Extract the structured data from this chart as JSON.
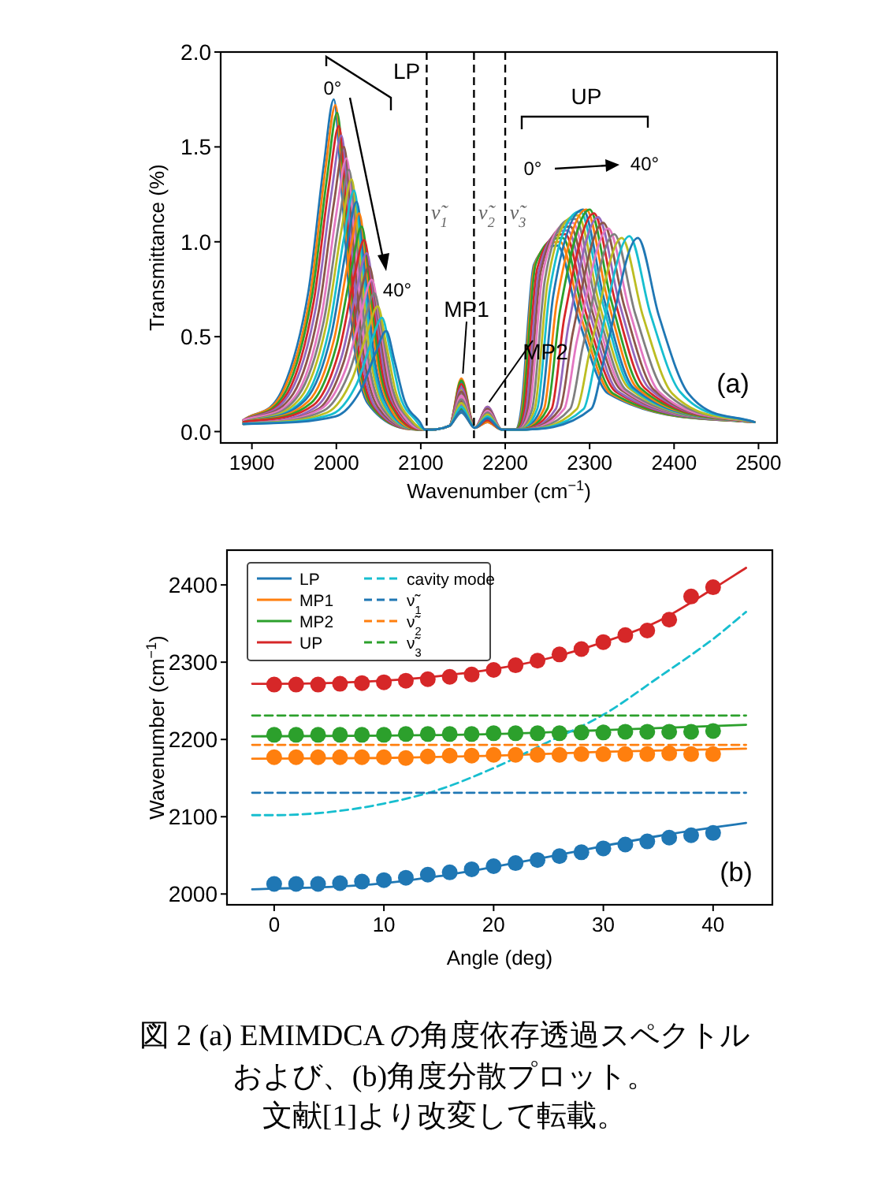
{
  "chart_data": [
    {
      "type": "line",
      "xlabel": "Wavenumber (cm$^{−1}$)",
      "ylabel": "Transmittance (%)",
      "xlim": [
        1863,
        2522
      ],
      "ylim": [
        -0.06,
        2.0
      ],
      "xticks": [
        1900,
        2000,
        2100,
        2200,
        2300,
        2400,
        2500
      ],
      "yticks": [
        {
          "value": 0,
          "label": "0.0"
        },
        {
          "value": 0.5,
          "label": "0.5"
        },
        {
          "value": 1,
          "label": "1.0"
        },
        {
          "value": 1.5,
          "label": "1.5"
        },
        {
          "value": 2,
          "label": "2.0"
        }
      ],
      "ref_lines": [
        {
          "axis": "x",
          "value": 2107,
          "label": "ν̃$_{1}$",
          "color": "#000000",
          "line_style": "dashed"
        },
        {
          "axis": "x",
          "value": 2163,
          "label": "ν̃$_{2}$",
          "color": "#000000",
          "line_style": "dashed"
        },
        {
          "axis": "x",
          "value": 2200,
          "label": "ν̃$_{3}$",
          "color": "#000000",
          "line_style": "dashed"
        }
      ],
      "annotations": [
        "LP",
        "0°",
        "40°",
        "UP",
        "0°",
        "40°",
        {
          "text": "MP1",
          "x": 2148,
          "y": 0.28
        },
        {
          "text": "MP2",
          "x": 2179,
          "y": 0.13
        },
        "(a)"
      ],
      "series": [
        {
          "color": "#1f77b4",
          "x": [
            1890,
            1937,
            1967,
            1985,
            1997,
            2007,
            2019,
            2037,
            2105,
            2134,
            2148,
            2164,
            2179,
            2196,
            2212,
            2219,
            2234,
            2262,
            2287,
            2322,
            2495
          ],
          "values": [
            0.06,
            0.23,
            0.74,
            1.4,
            1.75,
            1.23,
            0.53,
            0.15,
            0.01,
            0.03,
            0.1,
            0.02,
            0.05,
            0.01,
            0.01,
            0.12,
            0.88,
            0.98,
            0.59,
            0.2,
            0.05
          ]
        },
        {
          "color": "#ff7f0e",
          "x": [
            1890,
            1939,
            1969,
            1987,
            1999,
            2009,
            2021,
            2039,
            2105,
            2134,
            2148,
            2164,
            2179,
            2196,
            2212,
            2220,
            2235,
            2265,
            2290,
            2325,
            2495
          ],
          "values": [
            0.06,
            0.23,
            0.72,
            1.38,
            1.72,
            1.2,
            0.52,
            0.15,
            0.01,
            0.03,
            0.11,
            0.02,
            0.05,
            0.01,
            0.01,
            0.12,
            0.88,
            1.0,
            0.6,
            0.2,
            0.05
          ]
        },
        {
          "color": "#2ca02c",
          "x": [
            1890,
            1941,
            1971,
            1989,
            2001,
            2011,
            2023,
            2041,
            2105,
            2134,
            2148,
            2164,
            2179,
            2196,
            2212,
            2221,
            2236,
            2268,
            2293,
            2328,
            2495
          ],
          "values": [
            0.06,
            0.22,
            0.71,
            1.34,
            1.68,
            1.18,
            0.5,
            0.14,
            0.01,
            0.03,
            0.12,
            0.02,
            0.06,
            0.01,
            0.01,
            0.12,
            0.88,
            1.02,
            0.61,
            0.2,
            0.05
          ]
        },
        {
          "color": "#d62728",
          "x": [
            1890,
            1943,
            1973,
            1991,
            2003,
            2013,
            2025,
            2043,
            2105,
            2134,
            2148,
            2164,
            2179,
            2196,
            2212,
            2223,
            2238,
            2271,
            2296,
            2331,
            2495
          ],
          "values": [
            0.06,
            0.21,
            0.68,
            1.29,
            1.61,
            1.13,
            0.48,
            0.14,
            0.01,
            0.03,
            0.13,
            0.02,
            0.06,
            0.01,
            0.01,
            0.12,
            0.86,
            1.04,
            0.62,
            0.21,
            0.05
          ]
        },
        {
          "color": "#9467bd",
          "x": [
            1890,
            1946,
            1976,
            1994,
            2006,
            2016,
            2028,
            2046,
            2105,
            2134,
            2148,
            2164,
            2179,
            2196,
            2212,
            2225,
            2240,
            2274,
            2299,
            2334,
            2495
          ],
          "values": [
            0.06,
            0.21,
            0.66,
            1.25,
            1.56,
            1.09,
            0.47,
            0.13,
            0.01,
            0.03,
            0.14,
            0.02,
            0.07,
            0.01,
            0.01,
            0.12,
            0.85,
            1.06,
            0.64,
            0.21,
            0.05
          ]
        },
        {
          "color": "#8c564b",
          "x": [
            1890,
            1949,
            1979,
            1997,
            2009,
            2019,
            2031,
            2049,
            2105,
            2134,
            2148,
            2164,
            2179,
            2196,
            2212,
            2227,
            2242,
            2277,
            2302,
            2337,
            2495
          ],
          "values": [
            0.06,
            0.2,
            0.63,
            1.2,
            1.5,
            1.05,
            0.45,
            0.13,
            0.01,
            0.03,
            0.16,
            0.02,
            0.07,
            0.01,
            0.01,
            0.12,
            0.84,
            1.08,
            0.65,
            0.22,
            0.05
          ]
        },
        {
          "color": "#e377c2",
          "x": [
            1890,
            1952,
            1982,
            2000,
            2012,
            2022,
            2034,
            2052,
            2105,
            2134,
            2148,
            2164,
            2179,
            2196,
            2212,
            2229,
            2244,
            2280,
            2305,
            2340,
            2495
          ],
          "values": [
            0.06,
            0.19,
            0.6,
            1.15,
            1.44,
            1.01,
            0.43,
            0.13,
            0.01,
            0.03,
            0.18,
            0.02,
            0.08,
            0.01,
            0.01,
            0.12,
            0.82,
            1.1,
            0.66,
            0.22,
            0.05
          ]
        },
        {
          "color": "#7f7f7f",
          "x": [
            1890,
            1955,
            1985,
            2003,
            2015,
            2025,
            2037,
            2055,
            2105,
            2134,
            2148,
            2164,
            2179,
            2196,
            2212,
            2232,
            2247,
            2283,
            2308,
            2343,
            2495
          ],
          "values": [
            0.05,
            0.19,
            0.58,
            1.1,
            1.38,
            0.97,
            0.41,
            0.12,
            0.01,
            0.03,
            0.2,
            0.02,
            0.08,
            0.01,
            0.01,
            0.12,
            0.8,
            1.12,
            0.67,
            0.22,
            0.05
          ]
        },
        {
          "color": "#bcbd22",
          "x": [
            1890,
            1958,
            1988,
            2006,
            2018,
            2028,
            2040,
            2058,
            2105,
            2134,
            2148,
            2164,
            2179,
            2196,
            2212,
            2235,
            2250,
            2286,
            2311,
            2346,
            2495
          ],
          "values": [
            0.05,
            0.18,
            0.56,
            1.06,
            1.33,
            0.93,
            0.4,
            0.12,
            0.01,
            0.03,
            0.22,
            0.02,
            0.09,
            0.01,
            0.01,
            0.12,
            0.78,
            1.14,
            0.68,
            0.23,
            0.05
          ]
        },
        {
          "color": "#17becf",
          "x": [
            1890,
            1961,
            1991,
            2009,
            2021,
            2031,
            2043,
            2061,
            2105,
            2134,
            2148,
            2164,
            2179,
            2196,
            2212,
            2238,
            2253,
            2289,
            2314,
            2349,
            2495
          ],
          "values": [
            0.05,
            0.17,
            0.53,
            1.02,
            1.27,
            0.89,
            0.38,
            0.11,
            0.01,
            0.03,
            0.24,
            0.02,
            0.09,
            0.01,
            0.01,
            0.12,
            0.75,
            1.16,
            0.7,
            0.23,
            0.05
          ]
        },
        {
          "color": "#1f77b4",
          "x": [
            1890,
            1964,
            1994,
            2012,
            2024,
            2034,
            2046,
            2064,
            2105,
            2134,
            2148,
            2164,
            2179,
            2196,
            2212,
            2242,
            2257,
            2292,
            2317,
            2352,
            2495
          ],
          "values": [
            0.05,
            0.17,
            0.51,
            0.97,
            1.21,
            0.85,
            0.36,
            0.11,
            0.01,
            0.03,
            0.26,
            0.02,
            0.1,
            0.01,
            0.01,
            0.12,
            0.72,
            1.17,
            0.7,
            0.23,
            0.05
          ]
        },
        {
          "color": "#ff7f0e",
          "x": [
            1890,
            1967,
            1997,
            2015,
            2027,
            2037,
            2049,
            2067,
            2105,
            2134,
            2148,
            2164,
            2179,
            2196,
            2212,
            2246,
            2261,
            2296,
            2321,
            2356,
            2495
          ],
          "values": [
            0.05,
            0.16,
            0.48,
            0.92,
            1.15,
            0.81,
            0.35,
            0.1,
            0.01,
            0.03,
            0.28,
            0.02,
            0.11,
            0.01,
            0.01,
            0.12,
            0.68,
            1.17,
            0.7,
            0.23,
            0.05
          ]
        },
        {
          "color": "#2ca02c",
          "x": [
            1890,
            1970,
            2000,
            2018,
            2030,
            2040,
            2052,
            2070,
            2105,
            2134,
            2148,
            2164,
            2179,
            2196,
            2212,
            2250,
            2265,
            2300,
            2325,
            2360,
            2495
          ],
          "values": [
            0.05,
            0.15,
            0.45,
            0.86,
            1.08,
            0.76,
            0.32,
            0.1,
            0.01,
            0.03,
            0.27,
            0.02,
            0.12,
            0.01,
            0.01,
            0.12,
            0.64,
            1.17,
            0.7,
            0.23,
            0.05
          ]
        },
        {
          "color": "#d62728",
          "x": [
            1890,
            1973,
            2003,
            2021,
            2033,
            2043,
            2055,
            2073,
            2105,
            2134,
            2148,
            2164,
            2179,
            2196,
            2212,
            2255,
            2270,
            2305,
            2330,
            2365,
            2495
          ],
          "values": [
            0.05,
            0.14,
            0.42,
            0.81,
            1.01,
            0.71,
            0.3,
            0.09,
            0.01,
            0.03,
            0.25,
            0.02,
            0.13,
            0.01,
            0.01,
            0.12,
            0.6,
            1.15,
            0.69,
            0.23,
            0.05
          ]
        },
        {
          "color": "#9467bd",
          "x": [
            1890,
            1976,
            2006,
            2024,
            2036,
            2046,
            2058,
            2076,
            2105,
            2134,
            2148,
            2164,
            2179,
            2196,
            2212,
            2260,
            2275,
            2310,
            2335,
            2370,
            2495
          ],
          "values": [
            0.04,
            0.13,
            0.39,
            0.75,
            0.94,
            0.66,
            0.28,
            0.09,
            0.01,
            0.03,
            0.23,
            0.02,
            0.13,
            0.01,
            0.01,
            0.12,
            0.56,
            1.13,
            0.68,
            0.23,
            0.05
          ]
        },
        {
          "color": "#8c564b",
          "x": [
            1890,
            1979,
            2009,
            2027,
            2039,
            2049,
            2061,
            2079,
            2105,
            2134,
            2148,
            2164,
            2179,
            2196,
            2212,
            2265,
            2280,
            2316,
            2341,
            2376,
            2495
          ],
          "values": [
            0.04,
            0.12,
            0.37,
            0.7,
            0.87,
            0.61,
            0.26,
            0.08,
            0.01,
            0.03,
            0.21,
            0.02,
            0.12,
            0.01,
            0.01,
            0.12,
            0.52,
            1.1,
            0.66,
            0.22,
            0.05
          ]
        },
        {
          "color": "#e377c2",
          "x": [
            1890,
            1982,
            2012,
            2030,
            2042,
            2052,
            2064,
            2082,
            2105,
            2134,
            2148,
            2164,
            2179,
            2196,
            2212,
            2270,
            2285,
            2322,
            2347,
            2382,
            2495
          ],
          "values": [
            0.04,
            0.12,
            0.34,
            0.64,
            0.8,
            0.56,
            0.24,
            0.07,
            0.01,
            0.03,
            0.19,
            0.02,
            0.11,
            0.01,
            0.01,
            0.12,
            0.48,
            1.07,
            0.64,
            0.21,
            0.05
          ]
        },
        {
          "color": "#7f7f7f",
          "x": [
            1890,
            1985,
            2015,
            2033,
            2045,
            2055,
            2067,
            2085,
            2105,
            2134,
            2148,
            2164,
            2179,
            2196,
            2212,
            2277,
            2292,
            2329,
            2354,
            2389,
            2495
          ],
          "values": [
            0.04,
            0.11,
            0.31,
            0.58,
            0.73,
            0.51,
            0.22,
            0.07,
            0.01,
            0.03,
            0.17,
            0.02,
            0.1,
            0.01,
            0.01,
            0.12,
            0.45,
            1.04,
            0.62,
            0.21,
            0.05
          ]
        },
        {
          "color": "#bcbd22",
          "x": [
            1890,
            1989,
            2019,
            2037,
            2049,
            2059,
            2071,
            2089,
            2105,
            2134,
            2148,
            2164,
            2179,
            2196,
            2212,
            2285,
            2300,
            2338,
            2363,
            2398,
            2495
          ],
          "values": [
            0.04,
            0.1,
            0.28,
            0.53,
            0.66,
            0.46,
            0.2,
            0.06,
            0.01,
            0.03,
            0.15,
            0.02,
            0.09,
            0.01,
            0.01,
            0.12,
            0.42,
            1.02,
            0.61,
            0.2,
            0.05
          ]
        },
        {
          "color": "#17becf",
          "x": [
            1890,
            1994,
            2024,
            2042,
            2054,
            2064,
            2076,
            2094,
            2105,
            2134,
            2148,
            2164,
            2179,
            2196,
            2212,
            2293,
            2308,
            2347,
            2372,
            2407,
            2495
          ],
          "values": [
            0.04,
            0.09,
            0.25,
            0.48,
            0.6,
            0.42,
            0.18,
            0.06,
            0.01,
            0.03,
            0.13,
            0.02,
            0.08,
            0.01,
            0.01,
            0.12,
            0.4,
            1.03,
            0.62,
            0.21,
            0.05
          ]
        },
        {
          "color": "#1f77b4",
          "x": [
            1890,
            1999,
            2029,
            2047,
            2059,
            2069,
            2081,
            2099,
            2105,
            2134,
            2148,
            2164,
            2179,
            2196,
            2212,
            2302,
            2317,
            2357,
            2382,
            2417,
            2495
          ],
          "values": [
            0.04,
            0.08,
            0.22,
            0.42,
            0.53,
            0.37,
            0.16,
            0.05,
            0.01,
            0.03,
            0.11,
            0.02,
            0.07,
            0.01,
            0.01,
            0.12,
            0.38,
            1.02,
            0.61,
            0.2,
            0.05
          ]
        }
      ]
    },
    {
      "type": "line",
      "xlabel": "Angle (deg)",
      "ylabel": "Wavenumber (cm$^{−1}$)",
      "xlim": [
        -4.3,
        45.4
      ],
      "ylim": [
        1986,
        2445
      ],
      "xticks": [
        0,
        10,
        20,
        30,
        40
      ],
      "yticks": [
        2000,
        2100,
        2200,
        2300,
        2400
      ],
      "legend": "top left",
      "annotations": [
        "(b)",
        "図 2 (a) EMIMDCA の角度依存透過スペクトル",
        "および、(b)角度分散プロット。",
        "文献[1]より改変して転載。"
      ],
      "series": [
        {
          "name": "LP",
          "color": "#1f77b4",
          "x": [
            -2,
            0,
            5,
            10,
            15,
            20,
            25,
            30,
            35,
            40,
            43
          ],
          "values": [
            2006,
            2007,
            2009,
            2014,
            2023,
            2035,
            2048,
            2062,
            2075,
            2086,
            2092
          ]
        },
        {
          "name": "MP1",
          "color": "#ff7f0e",
          "x": [
            -2,
            10,
            20,
            30,
            43
          ],
          "values": [
            2175,
            2176,
            2179,
            2184,
            2188
          ]
        },
        {
          "name": "MP2",
          "color": "#2ca02c",
          "x": [
            -2,
            10,
            20,
            30,
            43
          ],
          "values": [
            2204,
            2205,
            2207,
            2212,
            2219
          ]
        },
        {
          "name": "UP",
          "color": "#d62728",
          "x": [
            -2,
            0,
            5,
            10,
            15,
            20,
            25,
            30,
            35,
            40,
            43
          ],
          "values": [
            2272,
            2272,
            2273,
            2276,
            2282,
            2291,
            2305,
            2326,
            2353,
            2395,
            2422
          ]
        },
        {
          "name": "cavity mode",
          "color": "#17becf",
          "line_style": "dashed",
          "x": [
            -2,
            0,
            5,
            10,
            15,
            20,
            25,
            30,
            35,
            40,
            43
          ],
          "values": [
            2102,
            2102,
            2106,
            2117,
            2135,
            2163,
            2197,
            2232,
            2280,
            2330,
            2365
          ]
        },
        {
          "name": "ν̃$_{1}$",
          "color": "#1f77b4",
          "line_style": "dashed",
          "x": [
            -2,
            43
          ],
          "values": [
            2131,
            2131
          ]
        },
        {
          "name": "ν̃$_{2}$",
          "color": "#ff7f0e",
          "line_style": "dashed",
          "x": [
            -2,
            43
          ],
          "values": [
            2193,
            2193
          ]
        },
        {
          "name": "ν̃$_{3}$",
          "color": "#2ca02c",
          "line_style": "dashed",
          "x": [
            -2,
            43
          ],
          "values": [
            2231,
            2231
          ]
        },
        {
          "type": "scatter",
          "marker": "circle",
          "color": "#1f77b4",
          "x": [
            0,
            2,
            4,
            6,
            8,
            10,
            12,
            14,
            16,
            18,
            20,
            22,
            24,
            26,
            28,
            30,
            32,
            34,
            36,
            38,
            40
          ],
          "values": [
            2013,
            2013,
            2013,
            2014,
            2016,
            2018,
            2021,
            2025,
            2028,
            2032,
            2036,
            2040,
            2044,
            2049,
            2054,
            2059,
            2064,
            2068,
            2073,
            2076,
            2079
          ]
        },
        {
          "type": "scatter",
          "marker": "circle",
          "color": "#ff7f0e",
          "x": [
            0,
            2,
            4,
            6,
            8,
            10,
            12,
            14,
            16,
            18,
            20,
            22,
            24,
            26,
            28,
            30,
            32,
            34,
            36,
            38,
            40
          ],
          "values": [
            2177,
            2177,
            2177,
            2177,
            2177,
            2177,
            2176,
            2178,
            2179,
            2179,
            2180,
            2180,
            2180,
            2180,
            2181,
            2181,
            2181,
            2181,
            2182,
            2181,
            2181
          ]
        },
        {
          "type": "scatter",
          "marker": "circle",
          "color": "#2ca02c",
          "x": [
            0,
            2,
            4,
            6,
            8,
            10,
            12,
            14,
            16,
            18,
            20,
            22,
            24,
            26,
            28,
            30,
            32,
            34,
            36,
            38,
            40
          ],
          "values": [
            2206,
            2206,
            2206,
            2206,
            2206,
            2206,
            2207,
            2207,
            2207,
            2207,
            2208,
            2208,
            2208,
            2208,
            2209,
            2209,
            2210,
            2210,
            2210,
            2210,
            2211
          ]
        },
        {
          "type": "scatter",
          "marker": "circle",
          "color": "#d62728",
          "x": [
            0,
            2,
            4,
            6,
            8,
            10,
            12,
            14,
            16,
            18,
            20,
            22,
            24,
            26,
            28,
            30,
            32,
            34,
            36,
            38,
            40
          ],
          "values": [
            2271,
            2271,
            2271,
            2272,
            2273,
            2274,
            2276,
            2278,
            2281,
            2284,
            2290,
            2296,
            2302,
            2310,
            2317,
            2326,
            2335,
            2341,
            2355,
            2385,
            2397
          ]
        }
      ]
    }
  ]
}
